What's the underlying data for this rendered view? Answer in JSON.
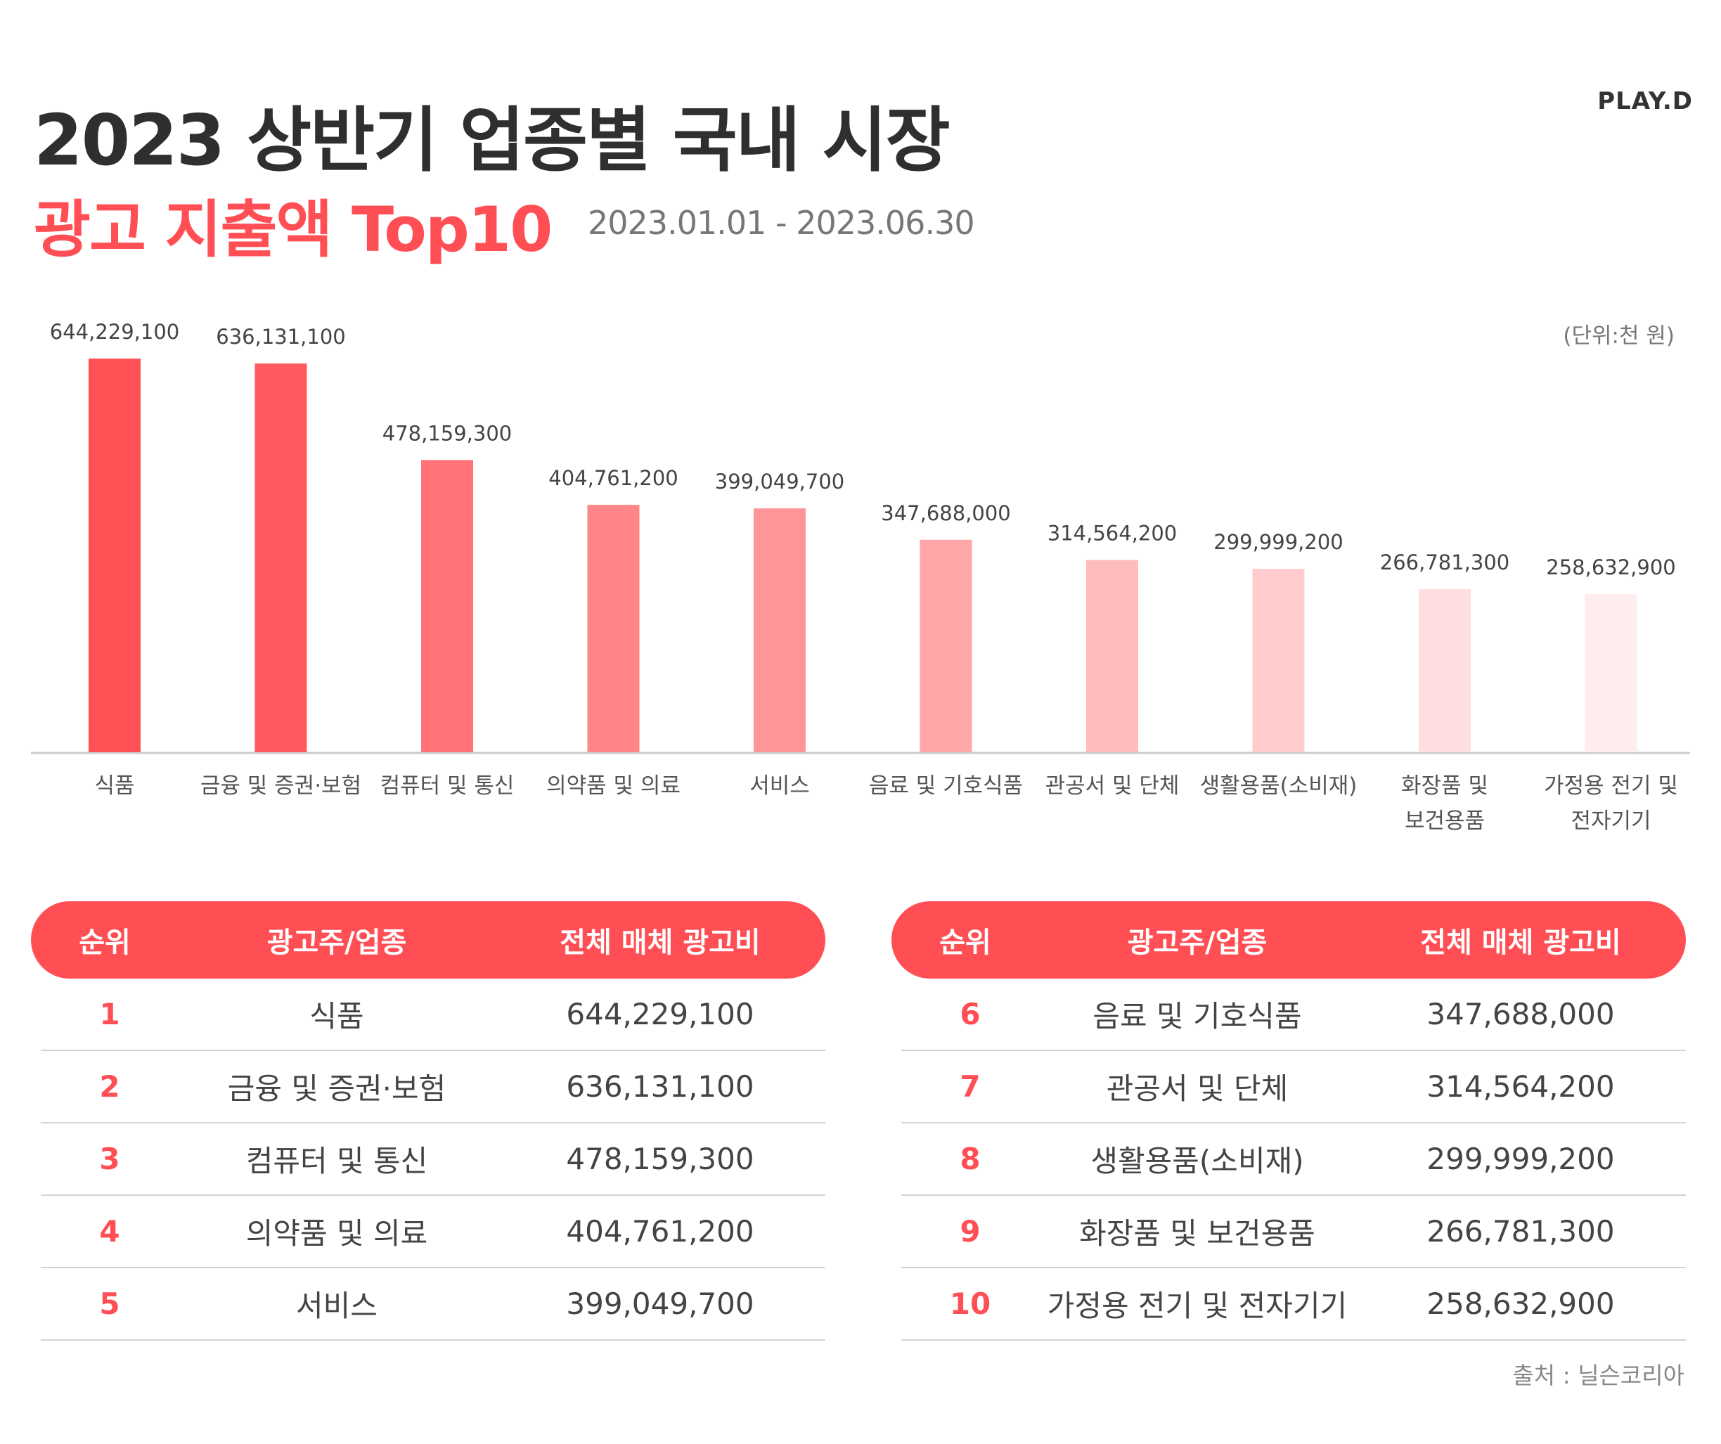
{
  "header": {
    "title_line1": "2023 상반기 업종별 국내 시장",
    "title_line2": "광고 지출액 Top10",
    "date_range": "2023.01.01 - 2023.06.30",
    "logo": "PLAY.D",
    "unit": "(단위:천 원)"
  },
  "chart_data": {
    "type": "bar",
    "categories": [
      [
        "식품"
      ],
      [
        "금융 및 증권·보험"
      ],
      [
        "컴퓨터 및 통신"
      ],
      [
        "의약품 및 의료"
      ],
      [
        "서비스"
      ],
      [
        "음료 및 기호식품"
      ],
      [
        "관공서 및 단체"
      ],
      [
        "생활용품(소비재)"
      ],
      [
        "화장품 및",
        "보건용품"
      ],
      [
        "가정용 전기 및",
        "전자기기"
      ]
    ],
    "values": [
      644229100,
      636131100,
      478159300,
      404761200,
      399049700,
      347688000,
      314564200,
      299999200,
      266781300,
      258632900
    ],
    "value_labels": [
      "644,229,100",
      "636,131,100",
      "478,159,300",
      "404,761,200",
      "399,049,700",
      "347,688,000",
      "314,564,200",
      "299,999,200",
      "266,781,300",
      "258,632,900"
    ],
    "colors": [
      "#ff5055",
      "#ff5a5f",
      "#ff7276",
      "#ff8588",
      "#ff9598",
      "#ffa6a8",
      "#ffbcbd",
      "#ffcbcc",
      "#ffdedf",
      "#ffeded"
    ],
    "ylim": [
      0,
      644229100
    ],
    "axis_color": "#cccccc"
  },
  "table": {
    "headers": [
      "순위",
      "광고주/업종",
      "전체 매체 광고비"
    ],
    "left": [
      {
        "rank": "1",
        "name": "식품",
        "amount": "644,229,100"
      },
      {
        "rank": "2",
        "name": "금융 및 증권·보험",
        "amount": "636,131,100"
      },
      {
        "rank": "3",
        "name": "컴퓨터 및 통신",
        "amount": "478,159,300"
      },
      {
        "rank": "4",
        "name": "의약품 및 의료",
        "amount": "404,761,200"
      },
      {
        "rank": "5",
        "name": "서비스",
        "amount": "399,049,700"
      }
    ],
    "right": [
      {
        "rank": "6",
        "name": "음료 및 기호식품",
        "amount": "347,688,000"
      },
      {
        "rank": "7",
        "name": "관공서 및 단체",
        "amount": "314,564,200"
      },
      {
        "rank": "8",
        "name": "생활용품(소비재)",
        "amount": "299,999,200"
      },
      {
        "rank": "9",
        "name": "화장품 및 보건용품",
        "amount": "266,781,300"
      },
      {
        "rank": "10",
        "name": "가정용 전기 및 전자기기",
        "amount": "258,632,900"
      }
    ]
  },
  "source": "출처 : 닐슨코리아"
}
